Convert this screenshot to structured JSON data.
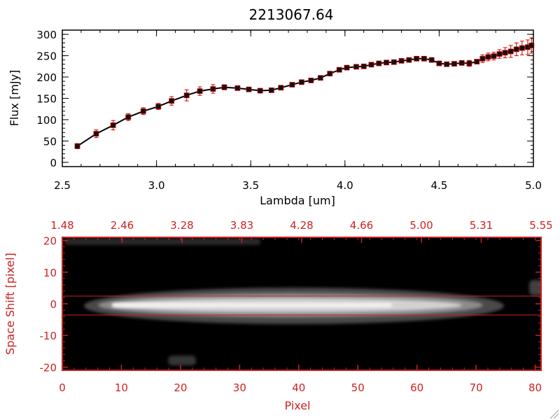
{
  "colors": {
    "axis_black": "#000000",
    "accent_red": "#cc2222",
    "errorbar_red": "#cc0000",
    "image_background": "#000000"
  },
  "chart_data": [
    {
      "type": "line",
      "title": "2213067.64",
      "xlabel": "Lambda [um]",
      "ylabel": "Flux [mJy]",
      "xlim": [
        2.5,
        5.0
      ],
      "ylim": [
        -10,
        310
      ],
      "xticks": [
        "2.5",
        "3.0",
        "3.5",
        "4.0",
        "4.5",
        "5.0"
      ],
      "yticks": [
        "0",
        "50",
        "100",
        "150",
        "200",
        "250",
        "300"
      ],
      "grid": false,
      "series": [
        {
          "x": [
            2.58,
            2.68,
            2.77,
            2.85,
            2.93,
            3.01,
            3.08,
            3.16,
            3.23,
            3.3,
            3.36,
            3.43,
            3.49,
            3.55,
            3.61,
            3.66,
            3.72,
            3.77,
            3.82,
            3.87,
            3.92,
            3.97,
            4.01,
            4.06,
            4.1,
            4.14,
            4.18,
            4.22,
            4.26,
            4.3,
            4.34,
            4.38,
            4.42,
            4.46,
            4.5,
            4.54,
            4.58,
            4.62,
            4.66,
            4.7,
            4.73,
            4.76,
            4.79,
            4.82,
            4.85,
            4.88,
            4.91,
            4.94,
            4.97,
            4.99
          ],
          "y": [
            38,
            67,
            87,
            106,
            120,
            131,
            144,
            157,
            167,
            172,
            176,
            174,
            171,
            168,
            169,
            175,
            182,
            188,
            192,
            198,
            208,
            217,
            222,
            224,
            225,
            229,
            232,
            234,
            235,
            238,
            240,
            243,
            243,
            240,
            232,
            230,
            231,
            233,
            232,
            236,
            243,
            247,
            249,
            254,
            257,
            260,
            265,
            268,
            270,
            274
          ],
          "yerr": [
            6,
            9,
            11,
            8,
            8,
            7,
            10,
            13,
            10,
            10,
            6,
            5,
            5,
            5,
            5,
            5,
            5,
            5,
            5,
            5,
            5,
            5,
            5,
            5,
            5,
            5,
            5,
            5,
            5,
            5,
            5,
            5,
            5,
            5,
            5,
            5,
            5,
            5,
            7,
            5,
            9,
            9,
            9,
            10,
            12,
            14,
            15,
            16,
            17,
            18
          ]
        }
      ]
    },
    {
      "type": "heatmap",
      "xlabel": "Pixel",
      "ylabel": "Space Shift [pixel]",
      "xlim": [
        0,
        81
      ],
      "ylim": [
        -21,
        21
      ],
      "xticks": [
        "0",
        "10",
        "20",
        "30",
        "40",
        "50",
        "60",
        "70",
        "80"
      ],
      "yticks": [
        "-20",
        "-10",
        "0",
        "10",
        "20"
      ],
      "top_axis_ticks": [
        "1.48",
        "2.46",
        "3.28",
        "3.83",
        "4.28",
        "4.66",
        "5.00",
        "5.31",
        "5.55"
      ],
      "extraction_window": [
        3,
        -3
      ],
      "colormap": "grayscale"
    }
  ]
}
